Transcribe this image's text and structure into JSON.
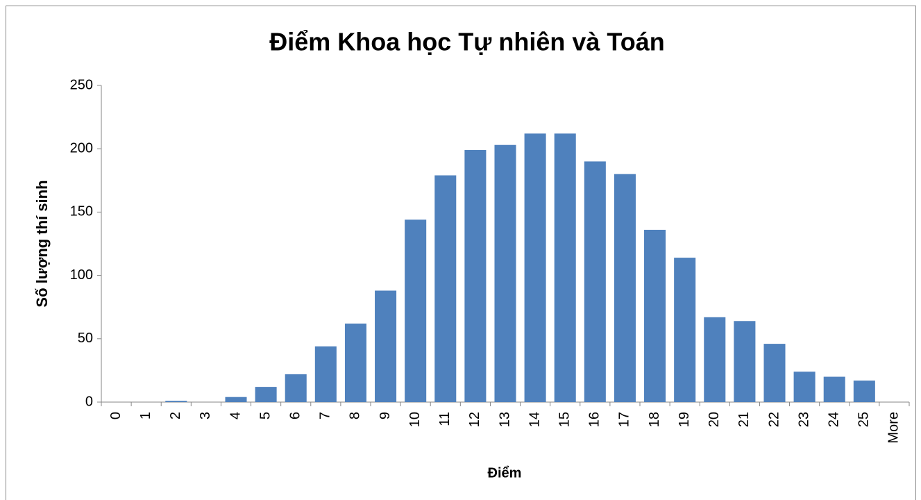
{
  "chart_data": {
    "type": "bar",
    "title": "Điểm Khoa học Tự nhiên và Toán",
    "x_label": "Điểm",
    "y_label": "Số lượng thí sinh",
    "categories": [
      "0",
      "1",
      "2",
      "3",
      "4",
      "5",
      "6",
      "7",
      "8",
      "9",
      "10",
      "11",
      "12",
      "13",
      "14",
      "15",
      "16",
      "17",
      "18",
      "19",
      "20",
      "21",
      "22",
      "23",
      "24",
      "25",
      "More"
    ],
    "values": [
      0,
      0,
      1,
      0,
      4,
      12,
      22,
      44,
      62,
      88,
      144,
      179,
      199,
      203,
      212,
      212,
      190,
      180,
      136,
      114,
      67,
      64,
      46,
      24,
      20,
      17,
      0
    ],
    "color": "#4f81bd",
    "ylim": [
      0,
      250
    ],
    "yticks": [
      0,
      50,
      100,
      150,
      200,
      250
    ]
  }
}
